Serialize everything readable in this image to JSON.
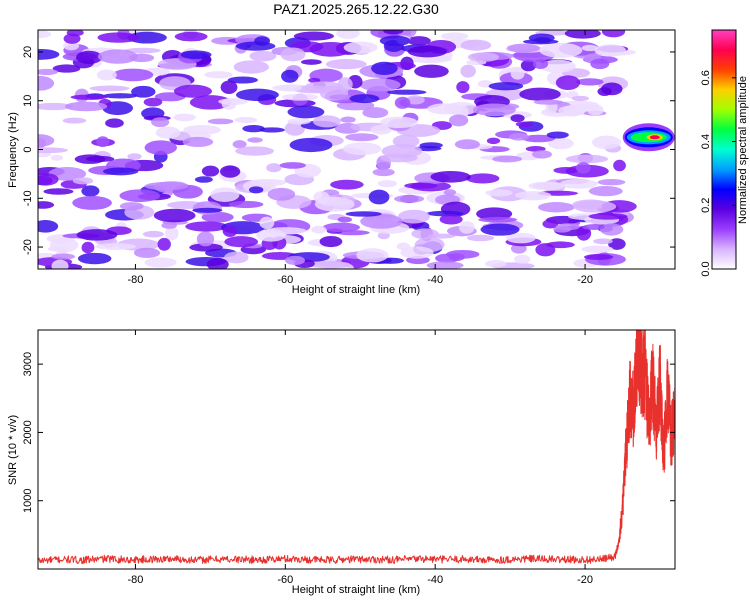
{
  "chart_data": [
    {
      "type": "heatmap",
      "title": "PAZ1.2025.265.12.22.G30",
      "xlabel": "Height of straight line (km)",
      "ylabel": "Frequency (Hz)",
      "xlim": [
        -93,
        -8
      ],
      "ylim": [
        -24.5,
        24.5
      ],
      "xticks": [
        -80,
        -60,
        -40,
        -20
      ],
      "yticks": [
        -20,
        -10,
        0,
        10,
        20
      ],
      "data_extent_x": [
        -93,
        -15
      ],
      "colorbar": {
        "label": "Normalized spectral amplitude",
        "range": [
          0,
          0.75
        ],
        "ticks": [
          "0.0",
          "0.2",
          "0.4",
          "0.6"
        ],
        "colors": [
          "#ffffff",
          "#d8b4ff",
          "#9a3dff",
          "#5a00e0",
          "#0000ff",
          "#00a0ff",
          "#00ffd0",
          "#00ff40",
          "#a0ff00",
          "#ffd000",
          "#ff4000",
          "#ff0050",
          "#ff40c0"
        ]
      },
      "strong_feature": {
        "x_range": [
          -15,
          -8
        ],
        "y_center": 2.5,
        "peak_amplitude": 0.72
      }
    },
    {
      "type": "line",
      "title": "",
      "xlabel": "Height of straight line (km)",
      "ylabel": "SNR (10 * v/v)",
      "xlim": [
        -93,
        -8
      ],
      "ylim": [
        0,
        3500
      ],
      "xticks": [
        -80,
        -60,
        -40,
        -20
      ],
      "yticks": [
        1000,
        2000,
        3000
      ],
      "color": "#e8302c",
      "series": [
        {
          "x": [
            -93,
            -90,
            -87,
            -84,
            -81,
            -78,
            -75,
            -72,
            -69,
            -66,
            -63,
            -60,
            -57,
            -54,
            -51,
            -48,
            -45,
            -42,
            -39,
            -36,
            -33,
            -30,
            -27,
            -24,
            -21,
            -18,
            -16,
            -15.5,
            -15,
            -14.5,
            -14,
            -13.5,
            -13,
            -12.5,
            -12,
            -11.5,
            -11,
            -10.5,
            -10,
            -9.5,
            -9,
            -8.5,
            -8
          ],
          "y": [
            120,
            140,
            130,
            150,
            135,
            140,
            150,
            130,
            145,
            140,
            135,
            150,
            140,
            130,
            145,
            140,
            135,
            150,
            140,
            145,
            130,
            140,
            150,
            140,
            135,
            140,
            180,
            400,
            900,
            1800,
            2500,
            2300,
            3300,
            2800,
            2900,
            2200,
            2700,
            2100,
            2800,
            1700,
            2600,
            1900,
            2400
          ]
        }
      ]
    }
  ]
}
